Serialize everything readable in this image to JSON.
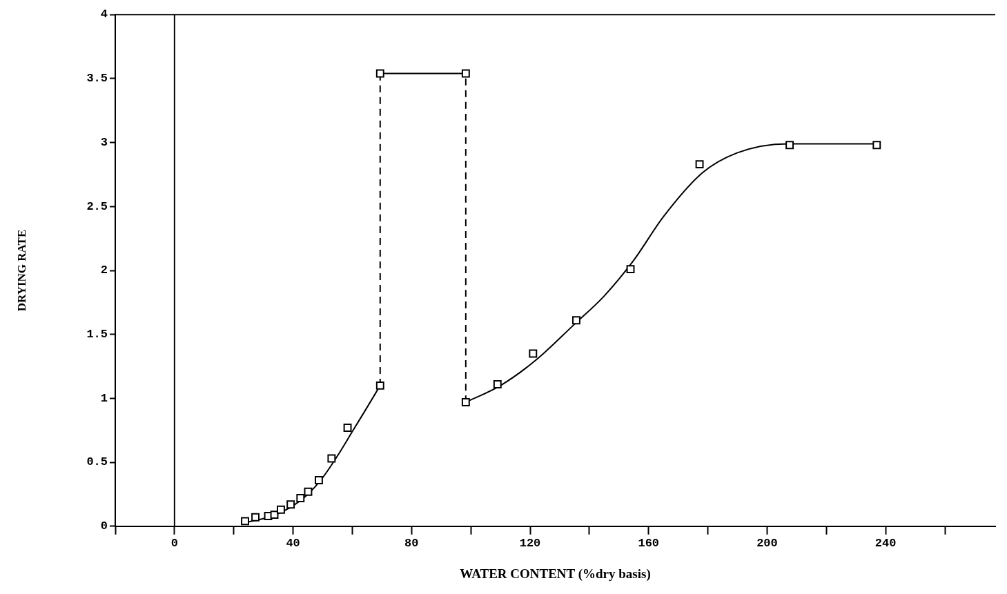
{
  "chart_data": {
    "type": "scatter",
    "xlabel": "WATER CONTENT (%dry basis)",
    "ylabel": "DRYING RATE",
    "xlim": [
      -20,
      277
    ],
    "ylim": [
      0,
      4
    ],
    "xticks": [
      {
        "value": -20,
        "label": null
      },
      0,
      {
        "value": 20,
        "label": null
      },
      40,
      {
        "value": 60,
        "label": null
      },
      80,
      {
        "value": 100,
        "label": null
      },
      120,
      {
        "value": 140,
        "label": null
      },
      160,
      {
        "value": 180,
        "label": null
      },
      200,
      {
        "value": 220,
        "label": null
      },
      240,
      {
        "value": 260,
        "label": null
      }
    ],
    "yticks": [
      0,
      0.5,
      1,
      1.5,
      2,
      2.5,
      3,
      3.5,
      4
    ],
    "grid": false,
    "legend": false,
    "ref_lines": [
      {
        "axis": "x",
        "value": 0,
        "color": "#000000",
        "line_style": "solid"
      }
    ],
    "series": [
      {
        "color": "#000000",
        "marker": "square",
        "x": [
          23.8,
          27.3,
          31.6,
          33.7,
          35.9,
          39.2,
          42.5,
          45.1,
          48.7,
          53,
          58.4,
          69.4,
          69.4,
          98.3,
          98.3,
          109,
          121,
          135.6,
          153.9,
          177.2,
          207.6,
          237
        ],
        "values": [
          0.04,
          0.07,
          0.08,
          0.09,
          0.13,
          0.17,
          0.22,
          0.27,
          0.36,
          0.53,
          0.77,
          1.1,
          3.54,
          3.54,
          0.97,
          1.11,
          1.35,
          1.61,
          2.01,
          2.83,
          2.98,
          2.98
        ]
      },
      {
        "type": "line",
        "color": "#000000",
        "marker": "none",
        "line_style": "solid",
        "x": [
          24,
          30,
          35,
          40,
          45,
          50,
          55,
          60,
          65,
          69.4
        ],
        "values": [
          0.03,
          0.06,
          0.1,
          0.16,
          0.25,
          0.38,
          0.55,
          0.74,
          0.93,
          1.1
        ]
      },
      {
        "type": "line",
        "color": "#000000",
        "marker": "none",
        "line_style": "solid",
        "x": [
          98.3,
          110,
          122,
          135,
          145,
          155,
          165,
          178,
          190,
          207,
          237
        ],
        "values": [
          0.97,
          1.1,
          1.3,
          1.58,
          1.8,
          2.08,
          2.42,
          2.76,
          2.92,
          2.99,
          2.99
        ]
      },
      {
        "type": "line",
        "color": "#000000",
        "marker": "none",
        "line_style": "solid",
        "x": [
          69.4,
          98.3
        ],
        "values": [
          3.54,
          3.54
        ]
      },
      {
        "type": "line",
        "color": "#000000",
        "marker": "none",
        "line_style": "dashed",
        "x": [
          69.4,
          69.4
        ],
        "values": [
          1.1,
          3.54
        ]
      },
      {
        "type": "line",
        "color": "#000000",
        "marker": "none",
        "line_style": "dashed",
        "x": [
          98.3,
          98.3
        ],
        "values": [
          0.97,
          3.54
        ]
      }
    ]
  }
}
